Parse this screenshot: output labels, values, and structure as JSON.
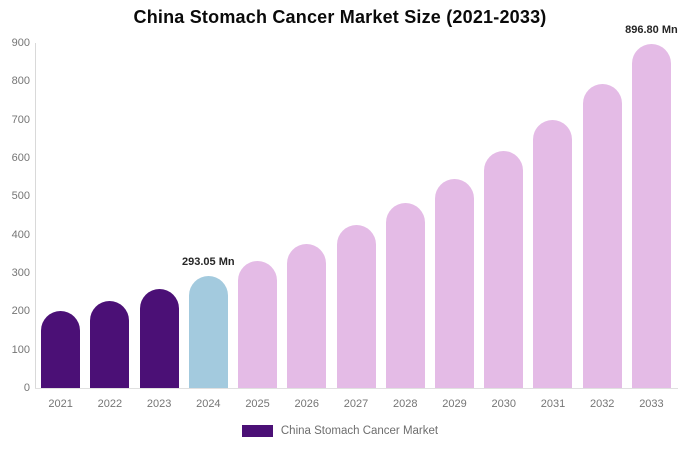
{
  "title": "China Stomach Cancer Market Size (2021-2033)",
  "chart_data": {
    "type": "bar",
    "title": "China Stomach Cancer Market Size (2021-2033)",
    "unit": "Mn",
    "categories": [
      "2021",
      "2022",
      "2023",
      "2024",
      "2025",
      "2026",
      "2027",
      "2028",
      "2029",
      "2030",
      "2031",
      "2032",
      "2033"
    ],
    "values": [
      200,
      228,
      258,
      293.05,
      332,
      376,
      425,
      482,
      545,
      618,
      699,
      792,
      896.8
    ],
    "groups": [
      "historical",
      "historical",
      "historical",
      "current",
      "forecast",
      "forecast",
      "forecast",
      "forecast",
      "forecast",
      "forecast",
      "forecast",
      "forecast",
      "forecast"
    ],
    "colors": {
      "historical": "#4B1076",
      "current": "#A3CADE",
      "forecast": "#E4BBE6"
    },
    "annotations": [
      {
        "category": "2024",
        "text": "293.05 Mn"
      },
      {
        "category": "2033",
        "text": "896.80 Mn"
      }
    ],
    "ylim": [
      0,
      900
    ],
    "yticks": [
      0,
      100,
      200,
      300,
      400,
      500,
      600,
      700,
      800,
      900
    ],
    "grid": false,
    "legend_position": "bottom",
    "legend_entries": [
      {
        "label": "China Stomach Cancer Market",
        "color": "#4B1076"
      }
    ],
    "axis_color": "#d9d9d9",
    "tick_label_color": "#757575"
  }
}
